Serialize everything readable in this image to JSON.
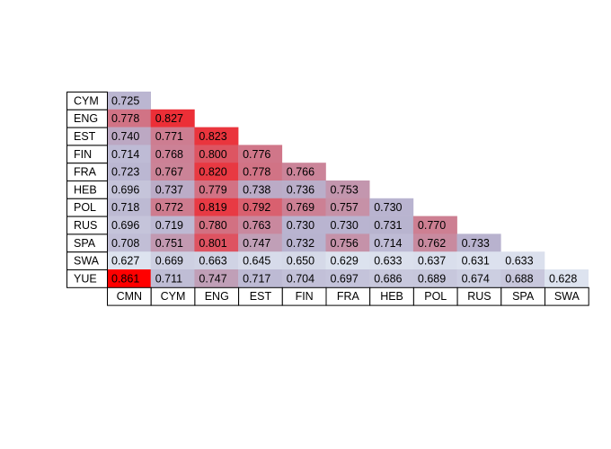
{
  "chart_data": {
    "type": "heatmap",
    "row_labels": [
      "CYM",
      "ENG",
      "EST",
      "FIN",
      "FRA",
      "HEB",
      "POL",
      "RUS",
      "SPA",
      "SWA",
      "YUE"
    ],
    "col_labels": [
      "CMN",
      "CYM",
      "ENG",
      "EST",
      "FIN",
      "FRA",
      "HEB",
      "POL",
      "RUS",
      "SPA",
      "SWA"
    ],
    "values": [
      [
        "0.725"
      ],
      [
        "0.778",
        "0.827"
      ],
      [
        "0.740",
        "0.771",
        "0.823"
      ],
      [
        "0.714",
        "0.768",
        "0.800",
        "0.776"
      ],
      [
        "0.723",
        "0.767",
        "0.820",
        "0.778",
        "0.766"
      ],
      [
        "0.696",
        "0.737",
        "0.779",
        "0.738",
        "0.736",
        "0.753"
      ],
      [
        "0.718",
        "0.772",
        "0.819",
        "0.792",
        "0.769",
        "0.757",
        "0.730"
      ],
      [
        "0.696",
        "0.719",
        "0.780",
        "0.763",
        "0.730",
        "0.730",
        "0.731",
        "0.770"
      ],
      [
        "0.708",
        "0.751",
        "0.801",
        "0.747",
        "0.732",
        "0.756",
        "0.714",
        "0.762",
        "0.733"
      ],
      [
        "0.627",
        "0.669",
        "0.663",
        "0.645",
        "0.650",
        "0.629",
        "0.633",
        "0.637",
        "0.631",
        "0.633"
      ],
      [
        "0.861",
        "0.711",
        "0.747",
        "0.717",
        "0.704",
        "0.697",
        "0.686",
        "0.689",
        "0.674",
        "0.688",
        "0.628"
      ]
    ],
    "color_scale": {
      "min": 0.627,
      "max": 0.861,
      "low_color": "#dde3ef",
      "mid_color": "#b8b3cf",
      "high_color": "#ff0000"
    }
  }
}
